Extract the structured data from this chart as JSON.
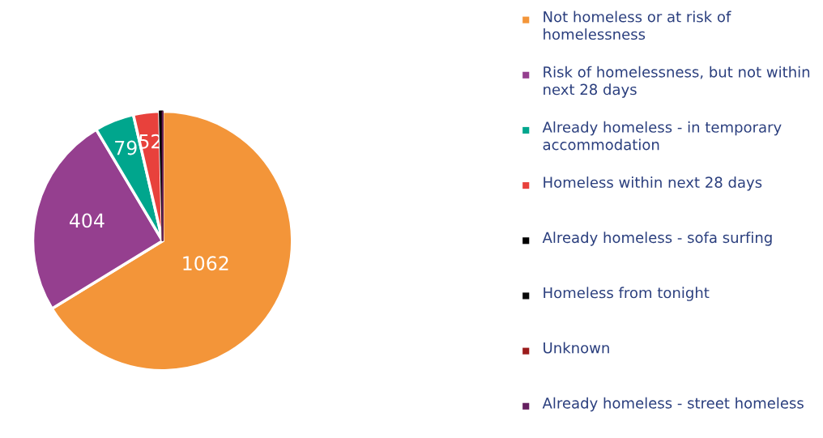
{
  "chart_data": {
    "type": "pie",
    "categories": [
      "Not homeless or at risk of homelessness",
      "Risk of homelessness, but not within next 28 days",
      "Already homeless - in temporary accommodation",
      "Homeless within next 28 days",
      "Already homeless - sofa surfing",
      "Homeless from tonight",
      "Unknown",
      "Already homeless - street homeless"
    ],
    "values": [
      1062,
      404,
      79,
      52,
      6,
      null,
      0,
      0
    ],
    "value_labels": [
      "1062",
      "404",
      "79",
      "52",
      null,
      null,
      null,
      null
    ],
    "colors": [
      "#f39539",
      "#953f8f",
      "#00a68d",
      "#e8413c",
      "#000000",
      "#0a0a0a",
      "#9b1b1b",
      "#652060"
    ],
    "legend": "right"
  }
}
